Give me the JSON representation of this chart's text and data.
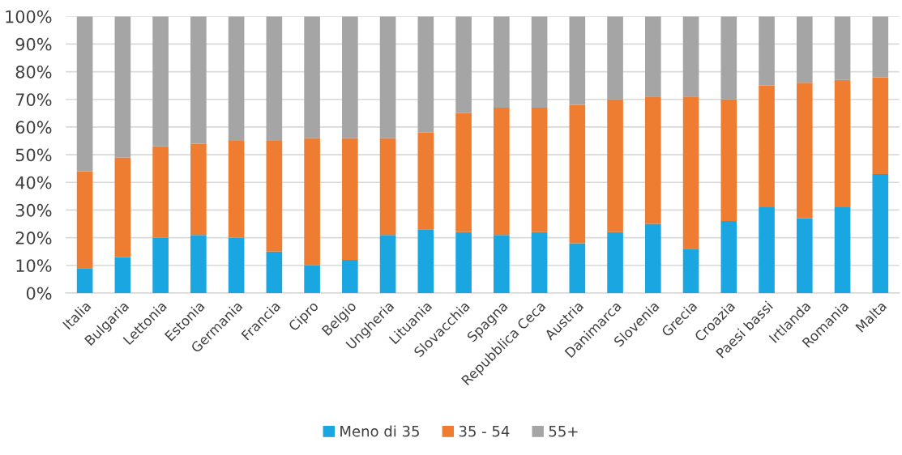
{
  "chart_data": {
    "type": "bar",
    "stacked": true,
    "categories": [
      "Italia",
      "Bulgaria",
      "Lettonia",
      "Estonia",
      "Germania",
      "Francia",
      "Cipro",
      "Belgio",
      "Ungheria",
      "Lituania",
      "Slovacchia",
      "Spagna",
      "Repubblica Ceca",
      "Austria",
      "Danimarca",
      "Slovenia",
      "Grecia",
      "Croazia",
      "Paesi bassi",
      "Irtlanda",
      "Romania",
      "Malta"
    ],
    "series": [
      {
        "name": "Meno di 35",
        "color": "#1aa6e0",
        "values": [
          9,
          13,
          20,
          21,
          20,
          15,
          10,
          12,
          21,
          23,
          22,
          21,
          22,
          18,
          22,
          25,
          16,
          26,
          31,
          27,
          31,
          43
        ]
      },
      {
        "name": "35 - 54",
        "color": "#ee7d31",
        "values": [
          35,
          36,
          33,
          33,
          35,
          40,
          46,
          44,
          35,
          35,
          43,
          46,
          45,
          50,
          48,
          46,
          55,
          44,
          44,
          49,
          46,
          35
        ]
      },
      {
        "name": "55+",
        "color": "#a5a5a5",
        "values": [
          56,
          51,
          47,
          46,
          45,
          45,
          44,
          44,
          44,
          42,
          35,
          33,
          33,
          32,
          30,
          29,
          29,
          30,
          25,
          24,
          23,
          22
        ]
      }
    ],
    "ylim": [
      0,
      100
    ],
    "yticks": [
      {
        "value": 0,
        "label": "0%"
      },
      {
        "value": 10,
        "label": "10%"
      },
      {
        "value": 20,
        "label": "20%"
      },
      {
        "value": 30,
        "label": "30%"
      },
      {
        "value": 40,
        "label": "40%"
      },
      {
        "value": 50,
        "label": "50%"
      },
      {
        "value": 60,
        "label": "60%"
      },
      {
        "value": 70,
        "label": "70%"
      },
      {
        "value": 80,
        "label": "80%"
      },
      {
        "value": 90,
        "label": "90%"
      },
      {
        "value": 100,
        "label": "100%"
      }
    ],
    "grid": "y",
    "legend": "bottom"
  }
}
